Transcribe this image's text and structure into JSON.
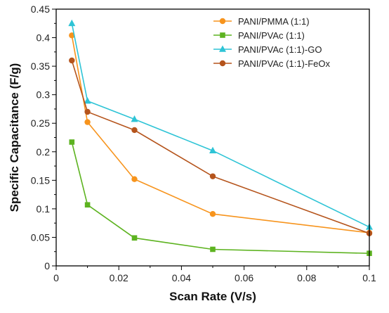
{
  "chart_data": {
    "type": "line",
    "title": "",
    "xlabel": "Scan Rate (V/s)",
    "ylabel": "Specific Capacitance (F/g)",
    "xlim": [
      0,
      0.1
    ],
    "ylim": [
      0,
      0.45
    ],
    "x_ticks": [
      "0",
      "0.02",
      "0.04",
      "0.06",
      "0.08",
      "0.1"
    ],
    "y_ticks": [
      "0",
      "0.05",
      "0.1",
      "0.15",
      "0.2",
      "0.25",
      "0.3",
      "0.35",
      "0.4",
      "0.45"
    ],
    "grid": false,
    "legend_position": "top-right",
    "x": [
      0.005,
      0.01,
      0.025,
      0.05,
      0.1
    ],
    "series": [
      {
        "name": "PANI/PMMA (1:1)",
        "color": "#F7941D",
        "marker": "circle",
        "values": [
          0.404,
          0.252,
          0.152,
          0.091,
          0.058
        ]
      },
      {
        "name": "PANI/PVAc (1:1)",
        "color": "#5DB320",
        "marker": "square",
        "values": [
          0.217,
          0.107,
          0.049,
          0.029,
          0.022
        ]
      },
      {
        "name": "PANI/PVAc (1:1)-GO",
        "color": "#2EC4D6",
        "marker": "triangle",
        "values": [
          0.425,
          0.289,
          0.257,
          0.202,
          0.068
        ]
      },
      {
        "name": "PANI/PVAc (1:1)-FeOx",
        "color": "#B5541C",
        "marker": "circle",
        "values": [
          0.36,
          0.27,
          0.238,
          0.157,
          0.057
        ]
      }
    ]
  }
}
